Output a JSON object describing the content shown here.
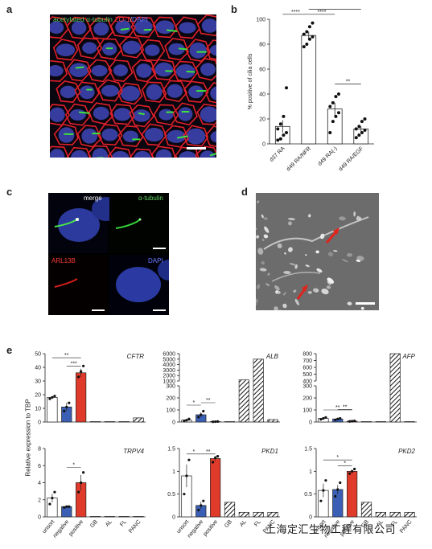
{
  "panels": {
    "a": {
      "letter": "a",
      "labels": [
        "acetylated α-tubulin",
        "ZO-1",
        "DAPI"
      ],
      "label_colors": [
        "#5fd35f",
        "#ff3b3b",
        "#6a7cff"
      ]
    },
    "b": {
      "letter": "b"
    },
    "c": {
      "letter": "c",
      "quadrant_labels": [
        "merge",
        "α-tubulin",
        "ARL13B",
        "DAPI"
      ],
      "quadrant_label_colors": [
        "#ffffff",
        "#5fd35f",
        "#ff3b3b",
        "#6a7cff"
      ]
    },
    "d": {
      "letter": "d"
    },
    "e": {
      "letter": "e"
    }
  },
  "watermark": "上海定汇生物工程有限公司",
  "colors": {
    "unsort": "#ffffff",
    "negative": "#3a5fb5",
    "positive": "#e03a2a",
    "stroke": "#111111"
  },
  "chart_data": [
    {
      "id": "b",
      "type": "bar",
      "ylabel": "% positive of cilia cells",
      "ylim": [
        0,
        100
      ],
      "yticks": [
        0,
        20,
        40,
        60,
        80,
        100
      ],
      "categories": [
        "d37 RA",
        "d49 RA/NFR",
        "d49 RA(-)",
        "d49 RA/EGF"
      ],
      "values": [
        14,
        87,
        28,
        12
      ],
      "errors": [
        5,
        3,
        5,
        2
      ],
      "points": [
        [
          3,
          4,
          7,
          9,
          12,
          16,
          22,
          45
        ],
        [
          78,
          80,
          84,
          86,
          88,
          90,
          94,
          97
        ],
        [
          9,
          18,
          22,
          25,
          30,
          33,
          38,
          40
        ],
        [
          5,
          7,
          9,
          11,
          12,
          14,
          18,
          20
        ]
      ],
      "sig": [
        {
          "from": 0,
          "to": 1,
          "label": "****",
          "y": 104
        },
        {
          "from": 1,
          "to": 2,
          "label": "****",
          "y": 104
        },
        {
          "from": 1,
          "to": 3,
          "label": "*",
          "y": 108
        },
        {
          "from": 0,
          "to": 3,
          "label": "****",
          "y": 112
        },
        {
          "from": 2,
          "to": 3,
          "label": "**",
          "y": 48
        }
      ]
    },
    {
      "id": "e-cftr",
      "type": "bar",
      "gene": "CFTR",
      "categories": [
        "unsort",
        "negative",
        "positive",
        "GB",
        "AL",
        "FL",
        "PANC"
      ],
      "values": [
        18,
        11,
        36,
        0,
        0,
        0,
        3
      ],
      "hatched": [
        false,
        false,
        false,
        true,
        true,
        true,
        true
      ],
      "errors": [
        1,
        3,
        3,
        0,
        0,
        0,
        0.3
      ],
      "points": [
        [
          17,
          18,
          19
        ],
        [
          8,
          11,
          14
        ],
        [
          33,
          37,
          41
        ],
        [],
        [],
        [],
        []
      ],
      "ylim": [
        0,
        50
      ],
      "yticks": [
        0,
        10,
        20,
        30,
        40,
        50
      ],
      "sig": [
        {
          "from": 0,
          "to": 2,
          "label": "**",
          "y": 47
        },
        {
          "from": 1,
          "to": 2,
          "label": "***",
          "y": 41
        }
      ]
    },
    {
      "id": "e-alb",
      "type": "bar",
      "gene": "ALB",
      "broken_axis": true,
      "categories": [
        "unsort",
        "negative",
        "positive",
        "GB",
        "AL",
        "FL",
        "PANC"
      ],
      "values": [
        15,
        60,
        3,
        0,
        1200,
        5000,
        20
      ],
      "hatched": [
        false,
        false,
        false,
        true,
        true,
        true,
        true
      ],
      "errors": [
        10,
        20,
        2,
        0,
        0,
        0,
        0
      ],
      "points": [
        [
          10,
          15,
          25
        ],
        [
          40,
          60,
          90
        ],
        [
          2,
          3,
          4
        ],
        [],
        [],
        [],
        []
      ],
      "lower_ylim": [
        0,
        100
      ],
      "lower_ticks": [
        0,
        100,
        200,
        300
      ],
      "upper_ylim": [
        1000,
        6000
      ],
      "upper_ticks": [
        1000,
        2000,
        3000,
        4000,
        5000,
        6000
      ],
      "sig": [
        {
          "from": 0,
          "to": 1,
          "label": "*",
          "y": 100
        },
        {
          "from": 1,
          "to": 2,
          "label": "**",
          "y": 100
        }
      ]
    },
    {
      "id": "e-afp",
      "type": "bar",
      "gene": "AFP",
      "broken_axis": true,
      "categories": [
        "unsort",
        "negative",
        "positive",
        "GB",
        "AL",
        "FL",
        "PANC"
      ],
      "values": [
        30,
        25,
        7,
        0,
        0,
        800,
        0
      ],
      "hatched": [
        false,
        false,
        false,
        true,
        true,
        true,
        true
      ],
      "errors": [
        5,
        5,
        2,
        0,
        0,
        0,
        0
      ],
      "points": [
        [
          22,
          30,
          38
        ],
        [
          18,
          25,
          30
        ],
        [
          5,
          7,
          9
        ],
        [],
        [],
        [],
        []
      ],
      "lower_ticks": [
        0,
        100,
        200,
        300
      ],
      "upper_ticks": [
        400,
        500,
        600,
        700,
        800
      ],
      "sig": [
        {
          "from": 0,
          "to": 2,
          "label": "**",
          "y": 60
        },
        {
          "from": 1,
          "to": 2,
          "label": "**",
          "y": 45
        }
      ]
    },
    {
      "id": "e-trpv4",
      "type": "bar",
      "gene": "TRPV4",
      "categories": [
        "unsort",
        "negative",
        "positive",
        "GB",
        "AL",
        "FL",
        "PANC"
      ],
      "values": [
        2.2,
        1.2,
        4.0,
        0.05,
        0.05,
        0.05,
        0.05
      ],
      "hatched": [
        false,
        false,
        false,
        true,
        true,
        true,
        true
      ],
      "errors": [
        0.5,
        0.05,
        0.9,
        0,
        0,
        0,
        0
      ],
      "points": [
        [
          1.5,
          2.2,
          2.9
        ],
        [
          1.1,
          1.2,
          1.2
        ],
        [
          2.9,
          4.0,
          5.2
        ],
        [],
        [],
        [],
        []
      ],
      "ylim": [
        0,
        8
      ],
      "yticks": [
        0,
        2,
        4,
        6,
        8
      ],
      "sig": [
        {
          "from": 1,
          "to": 2,
          "label": "*",
          "y": 5.8
        }
      ]
    },
    {
      "id": "e-pkd1",
      "type": "bar",
      "gene": "PKD1",
      "categories": [
        "unsort",
        "negative",
        "positive",
        "GB",
        "AL",
        "FL",
        "PANC"
      ],
      "values": [
        0.9,
        0.25,
        1.28,
        0.32,
        0.1,
        0.1,
        0.1
      ],
      "hatched": [
        false,
        false,
        false,
        true,
        true,
        true,
        true
      ],
      "errors": [
        0.25,
        0.08,
        0.05,
        0,
        0,
        0,
        0
      ],
      "points": [
        [
          0.5,
          0.9,
          1.25
        ],
        [
          0.15,
          0.25,
          0.35
        ],
        [
          1.2,
          1.3,
          1.33
        ],
        [],
        [],
        [],
        []
      ],
      "ylim": [
        0,
        1.5
      ],
      "yticks": [
        0,
        0.5,
        1.0,
        1.5
      ],
      "sig": [
        {
          "from": 0,
          "to": 1,
          "label": "*",
          "y": 1.38
        },
        {
          "from": 1,
          "to": 2,
          "label": "**",
          "y": 1.38
        }
      ]
    },
    {
      "id": "e-pkd2",
      "type": "bar",
      "gene": "PKD2",
      "categories": [
        "unsort",
        "negative",
        "positive",
        "GB",
        "AL",
        "FL",
        "PANC"
      ],
      "values": [
        0.58,
        0.6,
        1.0,
        0.32,
        0.1,
        0.1,
        0.1
      ],
      "hatched": [
        false,
        false,
        false,
        true,
        true,
        true,
        true
      ],
      "errors": [
        0.15,
        0.1,
        0.04,
        0,
        0,
        0,
        0
      ],
      "points": [
        [
          0.35,
          0.58,
          0.8
        ],
        [
          0.45,
          0.6,
          0.75
        ],
        [
          0.95,
          1.0,
          1.05
        ],
        [],
        [],
        [],
        []
      ],
      "ylim": [
        0,
        1.5
      ],
      "yticks": [
        0,
        0.5,
        1.0,
        1.5
      ],
      "sig": [
        {
          "from": 0,
          "to": 2,
          "label": "*",
          "y": 1.25
        },
        {
          "from": 1,
          "to": 2,
          "label": "*",
          "y": 1.12
        }
      ]
    }
  ],
  "e_ylabel": "Relative expression to TBP"
}
